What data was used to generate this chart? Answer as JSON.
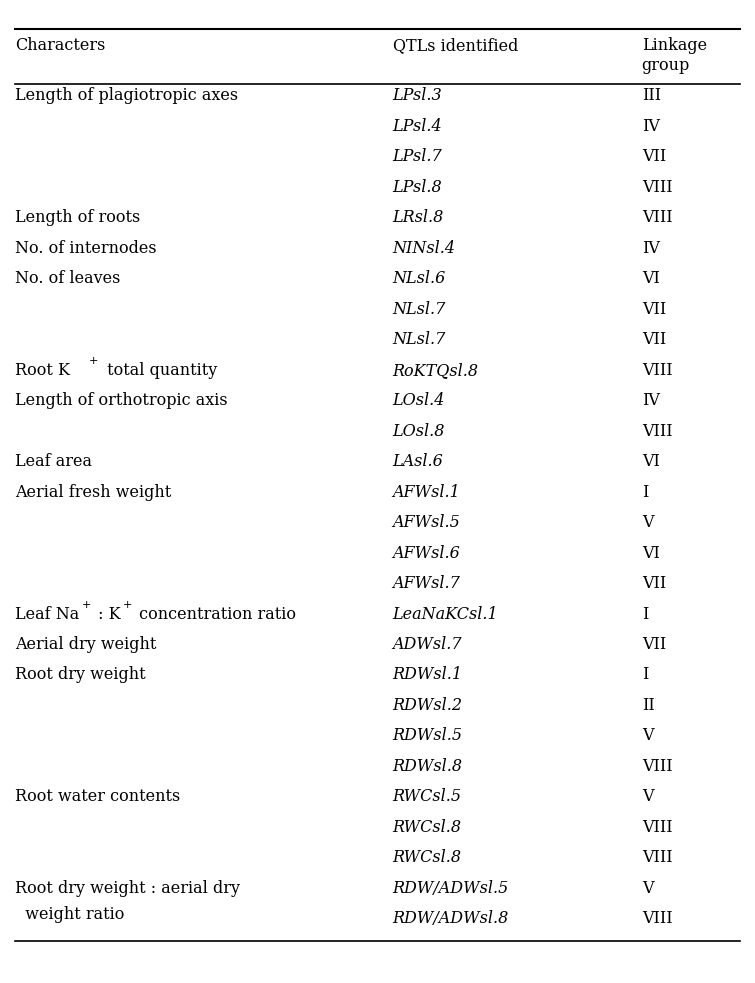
{
  "header": [
    "Characters",
    "QTLs identified",
    "Linkage\ngroup"
  ],
  "rows": [
    {
      "char": "Length of plagiotropic axes",
      "char_super": null,
      "qtl": "LPsl.3",
      "lg": "III"
    },
    {
      "char": "",
      "char_super": null,
      "qtl": "LPsl.4",
      "lg": "IV"
    },
    {
      "char": "",
      "char_super": null,
      "qtl": "LPsl.7",
      "lg": "VII"
    },
    {
      "char": "",
      "char_super": null,
      "qtl": "LPsl.8",
      "lg": "VIII"
    },
    {
      "char": "Length of roots",
      "char_super": null,
      "qtl": "LRsl.8",
      "lg": "VIII"
    },
    {
      "char": "No. of internodes",
      "char_super": null,
      "qtl": "NINsl.4",
      "lg": "IV"
    },
    {
      "char": "No. of leaves",
      "char_super": null,
      "qtl": "NLsl.6",
      "lg": "VI"
    },
    {
      "char": "",
      "char_super": null,
      "qtl": "NLsl.7",
      "lg": "VII"
    },
    {
      "char": "",
      "char_super": null,
      "qtl": "NLsl.7",
      "lg": "VII"
    },
    {
      "char": "Root K",
      "char_super": "+",
      "qtl": "RoKTQsl.8",
      "lg": "VIII"
    },
    {
      "char": "Length of orthotropic axis",
      "char_super": null,
      "qtl": "LOsl.4",
      "lg": "IV"
    },
    {
      "char": "",
      "char_super": null,
      "qtl": "LOsl.8",
      "lg": "VIII"
    },
    {
      "char": "Leaf area",
      "char_super": null,
      "qtl": "LAsl.6",
      "lg": "VI"
    },
    {
      "char": "Aerial fresh weight",
      "char_super": null,
      "qtl": "AFWsl.1",
      "lg": "I"
    },
    {
      "char": "",
      "char_super": null,
      "qtl": "AFWsl.5",
      "lg": "V"
    },
    {
      "char": "",
      "char_super": null,
      "qtl": "AFWsl.6",
      "lg": "VI"
    },
    {
      "char": "",
      "char_super": null,
      "qtl": "AFWsl.7",
      "lg": "VII"
    },
    {
      "char": "Leaf Na",
      "char_super": "+:K+",
      "qtl": "LeaNaKCsl.1",
      "lg": "I"
    },
    {
      "char": "Aerial dry weight",
      "char_super": null,
      "qtl": "ADWsl.7",
      "lg": "VII"
    },
    {
      "char": "Root dry weight",
      "char_super": null,
      "qtl": "RDWsl.1",
      "lg": "I"
    },
    {
      "char": "",
      "char_super": null,
      "qtl": "RDWsl.2",
      "lg": "II"
    },
    {
      "char": "",
      "char_super": null,
      "qtl": "RDWsl.5",
      "lg": "V"
    },
    {
      "char": "",
      "char_super": null,
      "qtl": "RDWsl.8",
      "lg": "VIII"
    },
    {
      "char": "Root water contents",
      "char_super": null,
      "qtl": "RWCsl.5",
      "lg": "V"
    },
    {
      "char": "",
      "char_super": null,
      "qtl": "RWCsl.8",
      "lg": "VIII"
    },
    {
      "char": "",
      "char_super": null,
      "qtl": "RWCsl.8",
      "lg": "VIII"
    },
    {
      "char": "Root dry weight : aerial dry\n  weight ratio",
      "char_super": null,
      "qtl": "RDW/ADWsl.5",
      "lg": "V"
    },
    {
      "char": "",
      "char_super": null,
      "qtl": "RDW/ADWsl.8",
      "lg": "VIII"
    }
  ],
  "bg_color": "#ffffff",
  "text_color": "#000000",
  "font_size": 11.5,
  "header_font_size": 11.5
}
